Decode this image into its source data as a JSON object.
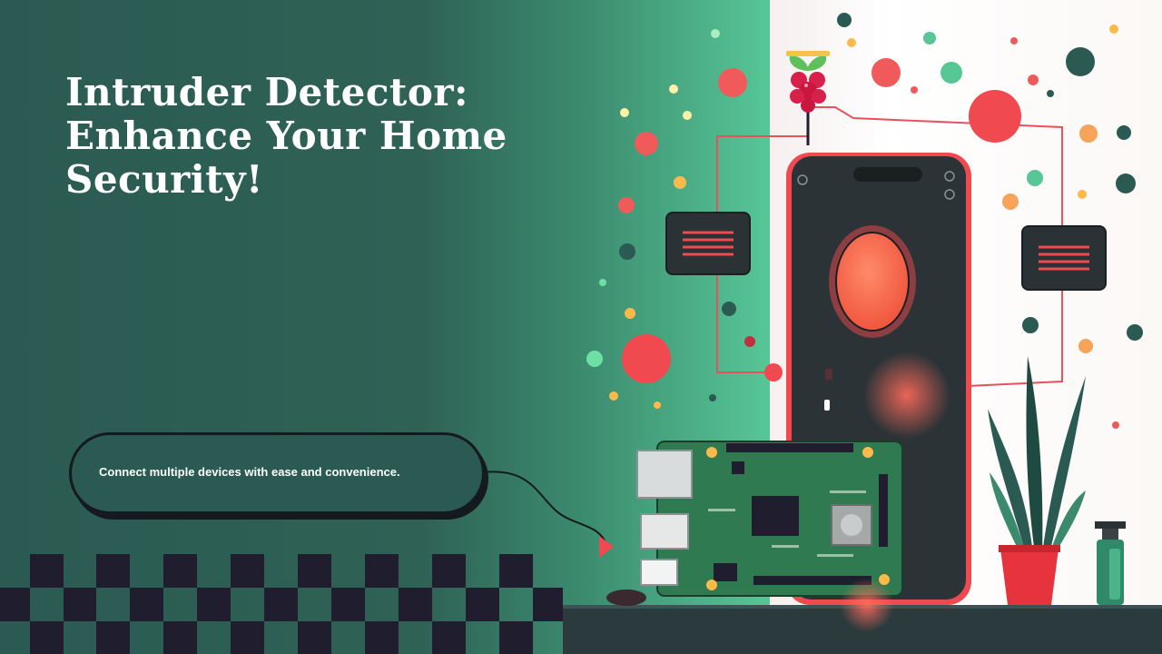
{
  "slide": {
    "title": "Intruder Detector: Enhance Your Home Security!",
    "callout_text": "Connect multiple devices with ease and convenience."
  },
  "colors": {
    "background_dark_green": "#2b5a52",
    "accent_red": "#f04a50",
    "accent_mint": "#57c797",
    "dark_navy": "#1f1d2e",
    "board_green": "#2f7a50"
  },
  "icons": [
    "raspberry-logo-icon",
    "smartphone-icon",
    "circuit-board-icon",
    "plant-icon",
    "chip-module-icon"
  ]
}
